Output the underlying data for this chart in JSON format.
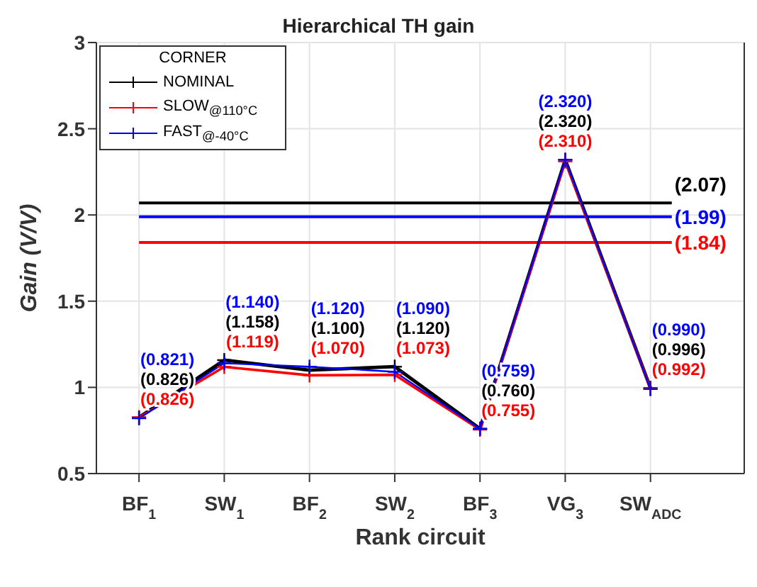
{
  "chart_data": {
    "type": "line",
    "title": "Hierarchical TH gain",
    "xlabel": "Rank circuit",
    "ylabel": "Gain (V/V)",
    "legend_title": "CORNER",
    "categories": [
      "BF$_{1}$",
      "SW$_{1}$",
      "BF$_{2}$",
      "SW$_{2}$",
      "BF$_{3}$",
      "VG$_{3}$",
      "SW$_{ADC}$"
    ],
    "series": [
      {
        "name": "NOMINAL",
        "color": "#000000",
        "values": [
          0.826,
          1.158,
          1.1,
          1.12,
          0.76,
          2.32,
          0.996
        ],
        "value_labels": [
          "(0.826)",
          "(1.158)",
          "(1.100)",
          "(1.120)",
          "(0.760)",
          "(2.320)",
          "(0.996)"
        ]
      },
      {
        "name": "SLOW$_{@110°C}$",
        "color": "#ff0000",
        "values": [
          0.826,
          1.119,
          1.07,
          1.073,
          0.755,
          2.31,
          0.992
        ],
        "value_labels": [
          "(0.826)",
          "(1.119)",
          "(1.070)",
          "(1.073)",
          "(0.755)",
          "(2.310)",
          "(0.992)"
        ]
      },
      {
        "name": "FAST$_{@-40°C}$",
        "color": "#0000ff",
        "values": [
          0.821,
          1.14,
          1.12,
          1.09,
          0.759,
          2.32,
          0.99
        ],
        "value_labels": [
          "(0.821)",
          "(1.140)",
          "(1.120)",
          "(1.090)",
          "(0.759)",
          "(2.320)",
          "(0.990)"
        ]
      }
    ],
    "ref_lines": [
      {
        "axis": "y",
        "value": 2.07,
        "label": "(2.07)",
        "color": "#000000"
      },
      {
        "axis": "y",
        "value": 1.99,
        "label": "(1.99)",
        "color": "#0000ff"
      },
      {
        "axis": "y",
        "value": 1.84,
        "label": "(1.84)",
        "color": "#ff0000"
      }
    ],
    "ylim": [
      0.5,
      3
    ],
    "yticks": [
      0.5,
      1,
      1.5,
      2,
      2.5,
      3
    ],
    "grid": true,
    "legend": "top left",
    "marker": "cross",
    "line_style": "solid"
  }
}
